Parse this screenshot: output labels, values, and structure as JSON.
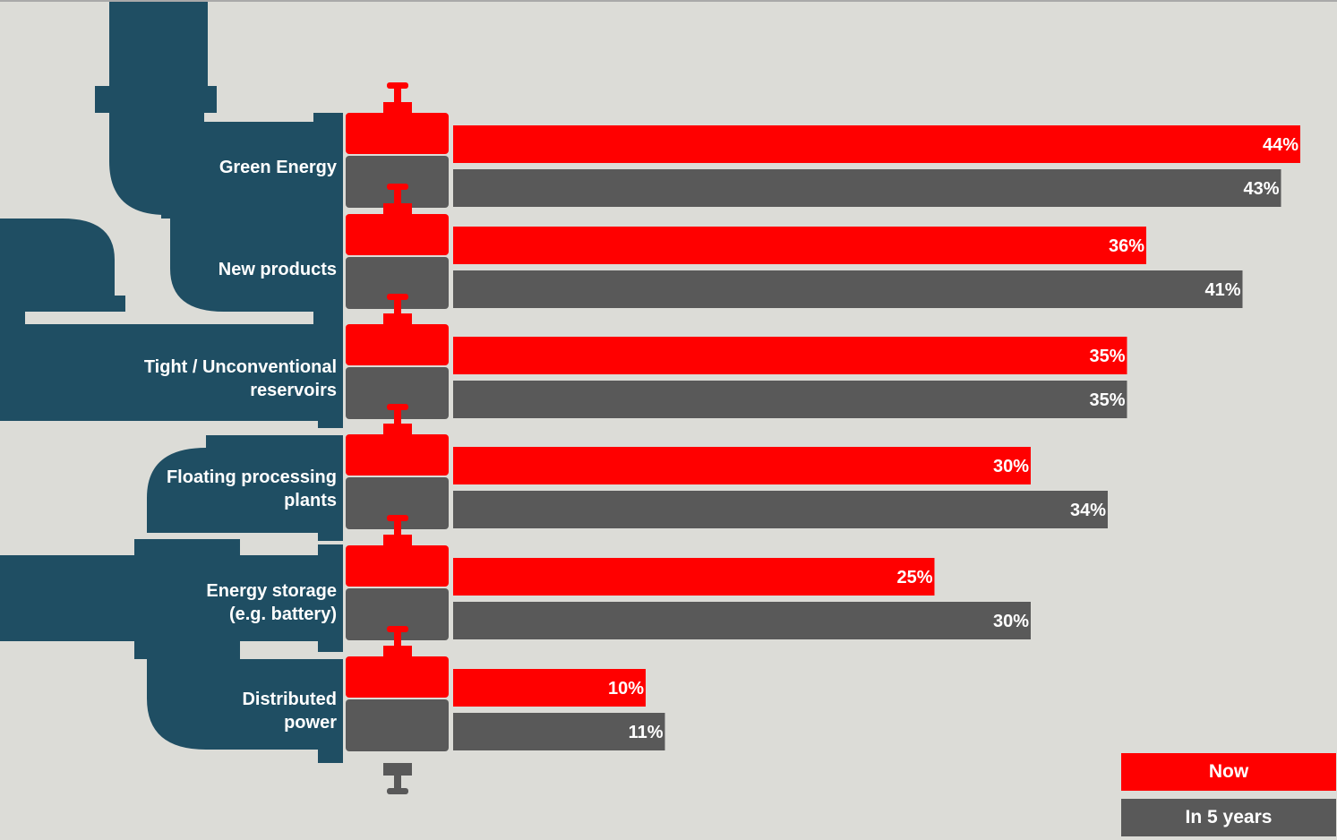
{
  "chart_data": {
    "type": "bar",
    "orientation": "horizontal",
    "categories": [
      "Green Energy",
      "New products",
      "Tight / Unconventional\nreservoirs",
      "Floating processing\nplants",
      "Energy storage\n(e.g. battery)",
      "Distributed\npower"
    ],
    "series": [
      {
        "name": "Now",
        "values": [
          44,
          36,
          35,
          30,
          25,
          10
        ],
        "color": "#ff0000"
      },
      {
        "name": "In 5 years",
        "values": [
          43,
          41,
          35,
          34,
          30,
          11
        ],
        "color": "#595959"
      }
    ],
    "value_labels": {
      "now": [
        "44%",
        "36%",
        "35%",
        "30%",
        "25%",
        "10%"
      ],
      "in5": [
        "43%",
        "41%",
        "35%",
        "34%",
        "30%",
        "11%"
      ]
    },
    "value_suffix": "%",
    "legend": {
      "position": "bottom-right",
      "items": [
        "Now",
        "In 5 years"
      ]
    },
    "grid": false,
    "title": "",
    "xlabel": "",
    "ylabel": ""
  },
  "colors": {
    "background": "#dcdcd7",
    "pipe": "#1f4e63",
    "now": "#ff0000",
    "in5": "#595959",
    "text": "#ffffff"
  },
  "decorations": {
    "pipe_icon": "pipe-manifold-icon",
    "valve_icon": "valve-icon"
  }
}
